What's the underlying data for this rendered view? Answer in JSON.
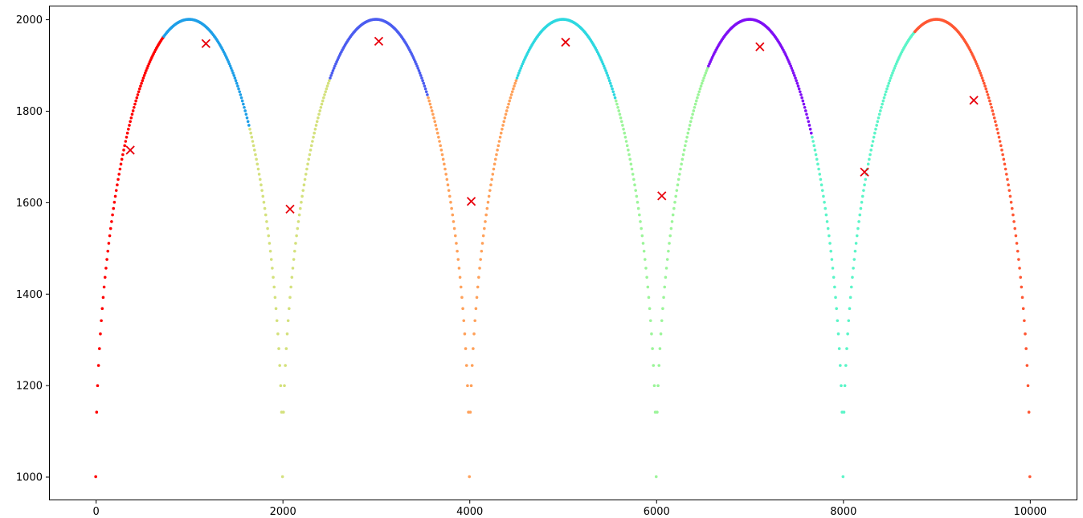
{
  "chart_data": {
    "type": "scatter",
    "title": "",
    "xlabel": "",
    "ylabel": "",
    "xlim": [
      -500,
      10500
    ],
    "ylim": [
      950,
      2030
    ],
    "x_ticks": [
      0,
      2000,
      4000,
      6000,
      8000,
      10000
    ],
    "x_tick_labels": [
      "0",
      "2000",
      "4000",
      "6000",
      "8000",
      "10000"
    ],
    "y_ticks": [
      1000,
      1200,
      1400,
      1600,
      1800,
      2000
    ],
    "y_tick_labels": [
      "1000",
      "1200",
      "1400",
      "1600",
      "1800",
      "2000"
    ],
    "grid": false,
    "legend": "none",
    "point_sample_step": 10,
    "curve_description": "Data points follow y = 1000 + sqrt(1000^2 - (x mod 2000 - 1000)^2) for x in [0, 10000], forming five semicircular arches peaking at y = 2000.",
    "segments": [
      {
        "x_start": 0,
        "x_end": 720,
        "color": "#ff0000"
      },
      {
        "x_start": 720,
        "x_end": 1640,
        "color": "#1e9fe8"
      },
      {
        "x_start": 1640,
        "x_end": 2500,
        "color": "#d4e17d"
      },
      {
        "x_start": 2500,
        "x_end": 3550,
        "color": "#4b5cf0"
      },
      {
        "x_start": 3550,
        "x_end": 4500,
        "color": "#ffa15a"
      },
      {
        "x_start": 4500,
        "x_end": 5560,
        "color": "#2dd8e0"
      },
      {
        "x_start": 5560,
        "x_end": 6550,
        "color": "#9cf59a"
      },
      {
        "x_start": 6550,
        "x_end": 7660,
        "color": "#7f0ff5"
      },
      {
        "x_start": 7660,
        "x_end": 8760,
        "color": "#5bf5c8"
      },
      {
        "x_start": 8760,
        "x_end": 10000,
        "color": "#ff5733"
      }
    ],
    "centroids": {
      "marker": "x",
      "color": "#e8000b",
      "points": [
        {
          "x": 370,
          "y": 1714
        },
        {
          "x": 1180,
          "y": 1947
        },
        {
          "x": 2080,
          "y": 1585
        },
        {
          "x": 3030,
          "y": 1952
        },
        {
          "x": 4020,
          "y": 1602
        },
        {
          "x": 5030,
          "y": 1950
        },
        {
          "x": 6060,
          "y": 1614
        },
        {
          "x": 7110,
          "y": 1940
        },
        {
          "x": 8230,
          "y": 1666
        },
        {
          "x": 9400,
          "y": 1823
        }
      ]
    }
  }
}
